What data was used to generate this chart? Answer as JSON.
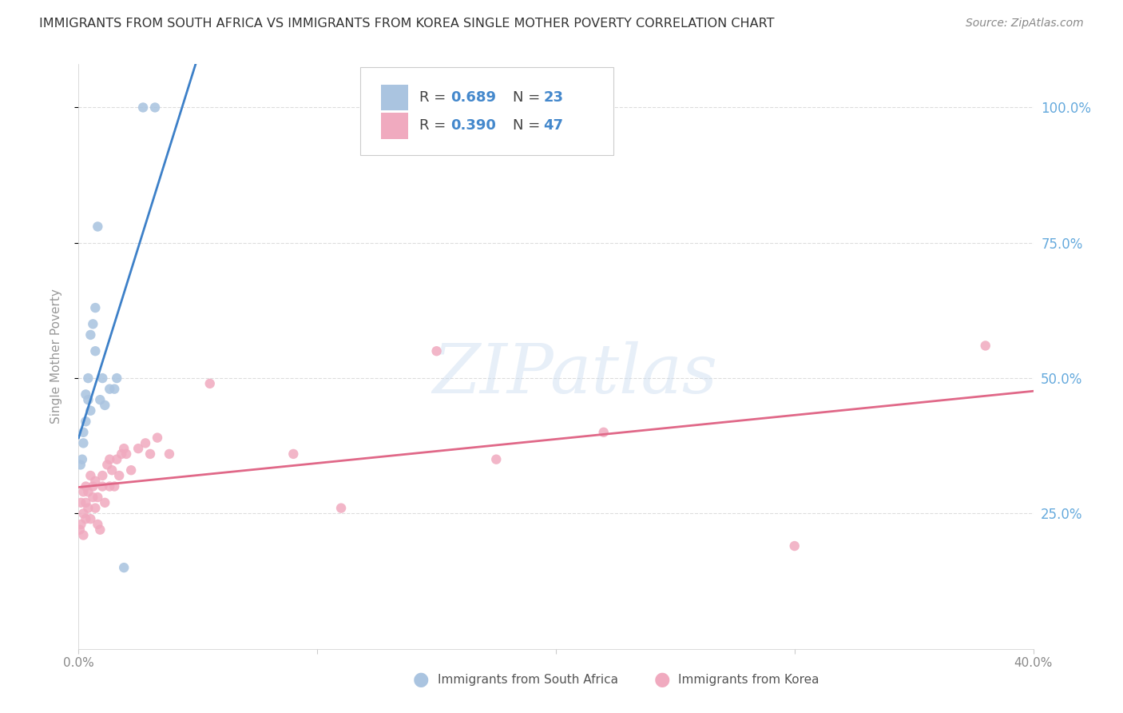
{
  "title": "IMMIGRANTS FROM SOUTH AFRICA VS IMMIGRANTS FROM KOREA SINGLE MOTHER POVERTY CORRELATION CHART",
  "source": "Source: ZipAtlas.com",
  "ylabel": "Single Mother Poverty",
  "right_yticks": [
    "100.0%",
    "75.0%",
    "50.0%",
    "25.0%"
  ],
  "right_ytick_vals": [
    1.0,
    0.75,
    0.5,
    0.25
  ],
  "xlim": [
    0.0,
    0.4
  ],
  "ylim": [
    0.0,
    1.08
  ],
  "bg_color": "#ffffff",
  "grid_color": "#dddddd",
  "watermark": "ZIPatlas",
  "blue_color": "#aac4e0",
  "blue_line": "#3d80c8",
  "pink_color": "#f0aabf",
  "pink_line": "#e06888",
  "legend_val_color": "#4488cc",
  "title_color": "#333333",
  "right_axis_color": "#66aadd",
  "sa_x": [
    0.0008,
    0.0015,
    0.002,
    0.002,
    0.003,
    0.003,
    0.004,
    0.004,
    0.005,
    0.005,
    0.006,
    0.007,
    0.007,
    0.008,
    0.009,
    0.01,
    0.011,
    0.013,
    0.015,
    0.016,
    0.019,
    0.027,
    0.032
  ],
  "sa_y": [
    0.34,
    0.35,
    0.38,
    0.4,
    0.42,
    0.47,
    0.46,
    0.5,
    0.44,
    0.58,
    0.6,
    0.55,
    0.63,
    0.78,
    0.46,
    0.5,
    0.45,
    0.48,
    0.48,
    0.5,
    0.15,
    1.0,
    1.0
  ],
  "k_x": [
    0.0005,
    0.001,
    0.001,
    0.002,
    0.002,
    0.002,
    0.003,
    0.003,
    0.003,
    0.004,
    0.004,
    0.005,
    0.005,
    0.006,
    0.006,
    0.007,
    0.007,
    0.008,
    0.008,
    0.009,
    0.01,
    0.01,
    0.011,
    0.012,
    0.013,
    0.013,
    0.014,
    0.015,
    0.016,
    0.017,
    0.018,
    0.019,
    0.02,
    0.022,
    0.025,
    0.028,
    0.03,
    0.033,
    0.038,
    0.055,
    0.09,
    0.11,
    0.15,
    0.175,
    0.22,
    0.3,
    0.38
  ],
  "k_y": [
    0.22,
    0.23,
    0.27,
    0.21,
    0.25,
    0.29,
    0.24,
    0.27,
    0.3,
    0.26,
    0.29,
    0.24,
    0.32,
    0.28,
    0.3,
    0.26,
    0.31,
    0.23,
    0.28,
    0.22,
    0.32,
    0.3,
    0.27,
    0.34,
    0.35,
    0.3,
    0.33,
    0.3,
    0.35,
    0.32,
    0.36,
    0.37,
    0.36,
    0.33,
    0.37,
    0.38,
    0.36,
    0.39,
    0.36,
    0.49,
    0.36,
    0.26,
    0.55,
    0.35,
    0.4,
    0.19,
    0.56
  ],
  "dot_size": 80
}
